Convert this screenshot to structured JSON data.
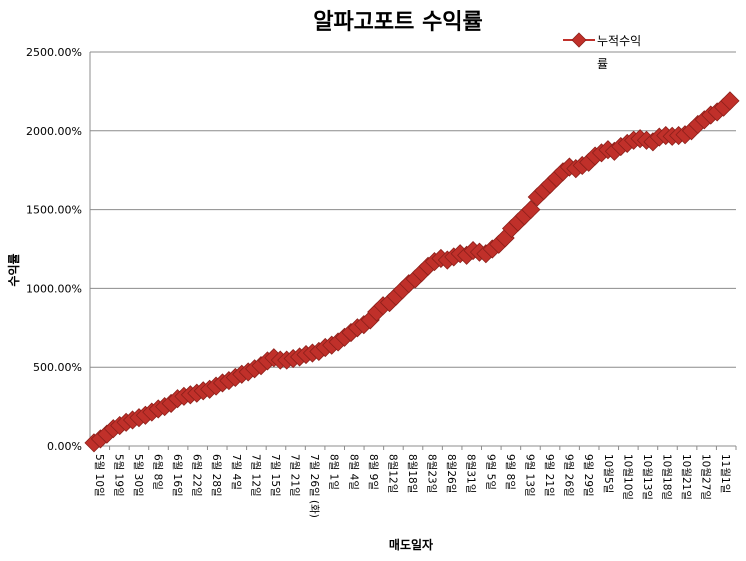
{
  "chart_data": {
    "type": "line",
    "title": "알파고포트 수익률",
    "xlabel": "매도일자",
    "ylabel": "수익률",
    "ylim": [
      0,
      2500
    ],
    "y_ticks": [
      "0.00%",
      "500.00%",
      "1000.00%",
      "1500.00%",
      "2000.00%",
      "2500.00%"
    ],
    "grid": "horizontal",
    "legend": {
      "position": "top-right",
      "lines": [
        "누적수익",
        "률"
      ]
    },
    "x_tick_labels": [
      "5월 10일",
      "5월 19일",
      "5월 30일",
      "6월 8일",
      "6월 16일",
      "6월 22일",
      "6월 28일",
      "7월 4일",
      "7월 12일",
      "7월 15일",
      "7월 21일",
      "7월 26일 (화)",
      "8월 1일",
      "8월 4일",
      "8월 9일",
      "8월12일",
      "8월18일",
      "8월23일",
      "8월26일",
      "8월31일",
      "9월 5일",
      "9월 8일",
      "9월 13일",
      "9월 21일",
      "9월 26일",
      "9월 29일",
      "10월5일",
      "10월10일",
      "10월13일",
      "10월18일",
      "10월21일",
      "10월27일",
      "11월1일"
    ],
    "series": [
      {
        "name": "누적수익률",
        "color": "#c0302a",
        "marker": "diamond",
        "values": [
          20,
          45,
          75,
          110,
          130,
          150,
          165,
          180,
          195,
          215,
          235,
          250,
          270,
          300,
          315,
          325,
          335,
          350,
          360,
          380,
          400,
          415,
          435,
          455,
          470,
          490,
          510,
          540,
          560,
          545,
          545,
          555,
          565,
          580,
          590,
          600,
          625,
          640,
          660,
          690,
          720,
          750,
          770,
          800,
          850,
          890,
          910,
          950,
          990,
          1030,
          1060,
          1100,
          1140,
          1170,
          1190,
          1180,
          1200,
          1220,
          1210,
          1240,
          1230,
          1220,
          1250,
          1280,
          1320,
          1380,
          1420,
          1460,
          1500,
          1580,
          1620,
          1660,
          1700,
          1740,
          1770,
          1760,
          1780,
          1800,
          1840,
          1860,
          1880,
          1870,
          1900,
          1920,
          1940,
          1950,
          1940,
          1930,
          1960,
          1970,
          1965,
          1970,
          1975,
          2000,
          2040,
          2070,
          2100,
          2120,
          2150,
          2190
        ]
      }
    ]
  }
}
